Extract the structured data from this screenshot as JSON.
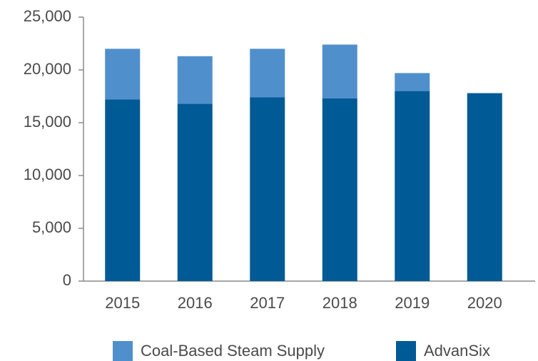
{
  "chart_data": {
    "type": "stacked_bar",
    "categories": [
      "2015",
      "2016",
      "2017",
      "2018",
      "2019",
      "2020"
    ],
    "series": [
      {
        "name": "Coal-Based Steam Supply",
        "color": "#4f8fcc",
        "values": [
          4800,
          4500,
          4600,
          5100,
          1700,
          0
        ]
      },
      {
        "name": "AdvanSix",
        "color": "#005a96",
        "values": [
          17200,
          16800,
          17400,
          17300,
          18000,
          17800
        ]
      }
    ],
    "ylim": [
      0,
      25000
    ],
    "yticks": [
      0,
      {
        "value": 5000,
        "label": "5,000"
      },
      {
        "value": 10000,
        "label": "10,000"
      },
      {
        "value": 15000,
        "label": "15,000"
      },
      {
        "value": 20000,
        "label": "20,000"
      },
      {
        "value": 25000,
        "label": "25,000"
      }
    ]
  }
}
